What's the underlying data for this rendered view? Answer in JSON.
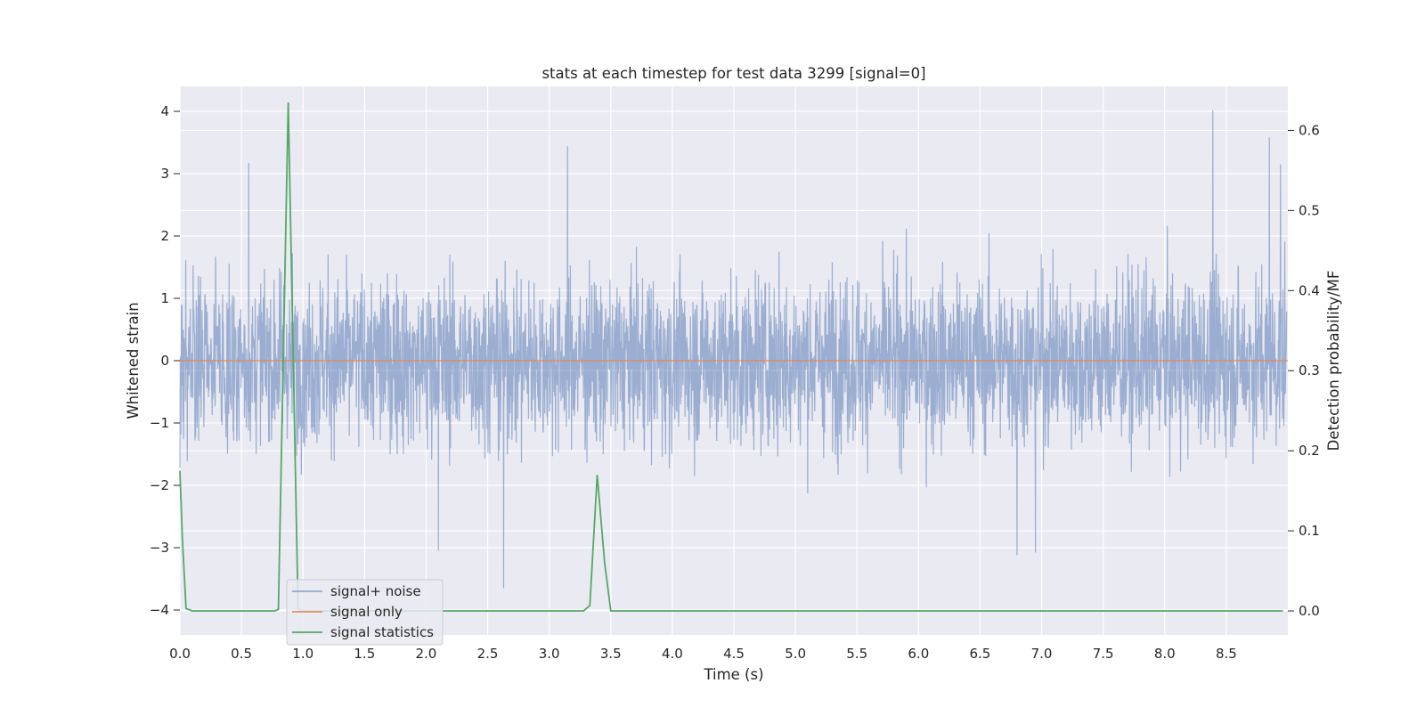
{
  "chart_data": {
    "type": "line",
    "title": "stats at each timestep for test data 3299 [signal=0]",
    "xlabel": "Time (s)",
    "ylabel_left": "Whitened strain",
    "ylabel_right": "Detection probability/MF",
    "xlim": [
      0.0,
      9.0
    ],
    "ylim_left": [
      -4.4,
      4.4
    ],
    "ylim_right": [
      -0.03,
      0.655
    ],
    "xticks": [
      "0.0",
      "0.5",
      "1.0",
      "1.5",
      "2.0",
      "2.5",
      "3.0",
      "3.5",
      "4.0",
      "4.5",
      "5.0",
      "5.5",
      "6.0",
      "6.5",
      "7.0",
      "7.5",
      "8.0",
      "8.5"
    ],
    "yticks_left": [
      "4",
      "3",
      "2",
      "1",
      "0",
      "−1",
      "−2",
      "−3",
      "−4"
    ],
    "yticks_right": [
      "0.6",
      "0.5",
      "0.4",
      "0.3",
      "0.2",
      "0.1",
      "0.0"
    ],
    "grid": true,
    "legend_position": "lower-left",
    "series": [
      {
        "name": "signal+ noise",
        "axis": "left",
        "color": "#4c72b0",
        "note_range": [
          -3.65,
          4.02
        ],
        "peaks": [
          {
            "x": 8.39,
            "y": 4.02
          },
          {
            "x": 0.56,
            "y": 3.17
          },
          {
            "x": 3.15,
            "y": 3.44
          },
          {
            "x": 8.85,
            "y": 3.58
          },
          {
            "x": 8.94,
            "y": 3.15
          },
          {
            "x": 2.63,
            "y": -3.65
          },
          {
            "x": 6.8,
            "y": -3.12
          },
          {
            "x": 6.95,
            "y": -3.08
          },
          {
            "x": 2.1,
            "y": -3.05
          }
        ]
      },
      {
        "name": "signal only",
        "axis": "left",
        "color": "#dd8452",
        "value": 0
      },
      {
        "name": "signal statistics",
        "axis": "right",
        "color": "#55a868",
        "x": [
          0.0,
          0.02,
          0.05,
          0.1,
          0.2,
          0.6,
          0.77,
          0.8,
          0.88,
          0.96,
          1.0,
          1.5,
          2.0,
          2.5,
          3.0,
          3.28,
          3.33,
          3.39,
          3.45,
          3.5,
          4.0,
          5.0,
          6.0,
          7.0,
          8.0,
          8.96
        ],
        "y": [
          0.175,
          0.09,
          0.003,
          0.0,
          0.0,
          0.0,
          0.0,
          0.002,
          0.635,
          0.002,
          0.0,
          0.0,
          0.0,
          0.0,
          0.0,
          0.0,
          0.007,
          0.17,
          0.06,
          0.0,
          0.0,
          0.0,
          0.0,
          0.0,
          0.0,
          0.0
        ]
      }
    ]
  }
}
